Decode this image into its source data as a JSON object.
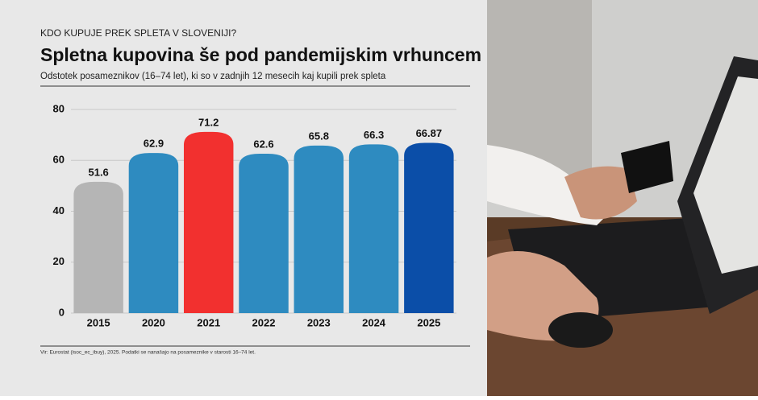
{
  "chart_data": {
    "type": "bar",
    "kicker": "KDO KUPUJE PREK SPLETA V SLOVENIJI?",
    "title": "Spletna kupovina še pod pandemijskim vrhuncem",
    "subtitle": "Odstotek posameznikov (16–74 let), ki so v zadnjih 12 mesecih kaj kupili prek spleta",
    "source": "Vir: Eurostat (isoc_ec_ibuy), 2025. Podatki se nanašajo na posameznike v starosti 16–74 let.",
    "categories": [
      "2015",
      "2020",
      "2021",
      "2022",
      "2023",
      "2024",
      "2025"
    ],
    "values": [
      51.6,
      62.9,
      71.2,
      62.6,
      65.8,
      66.3,
      66.87
    ],
    "colors": [
      "#b5b5b5",
      "#2e8bc0",
      "#f2302f",
      "#2e8bc0",
      "#2e8bc0",
      "#2e8bc0",
      "#0b4ea8"
    ],
    "ylim": [
      0,
      80
    ],
    "yticks": [
      0,
      20,
      40,
      60,
      80
    ],
    "grid": true
  }
}
